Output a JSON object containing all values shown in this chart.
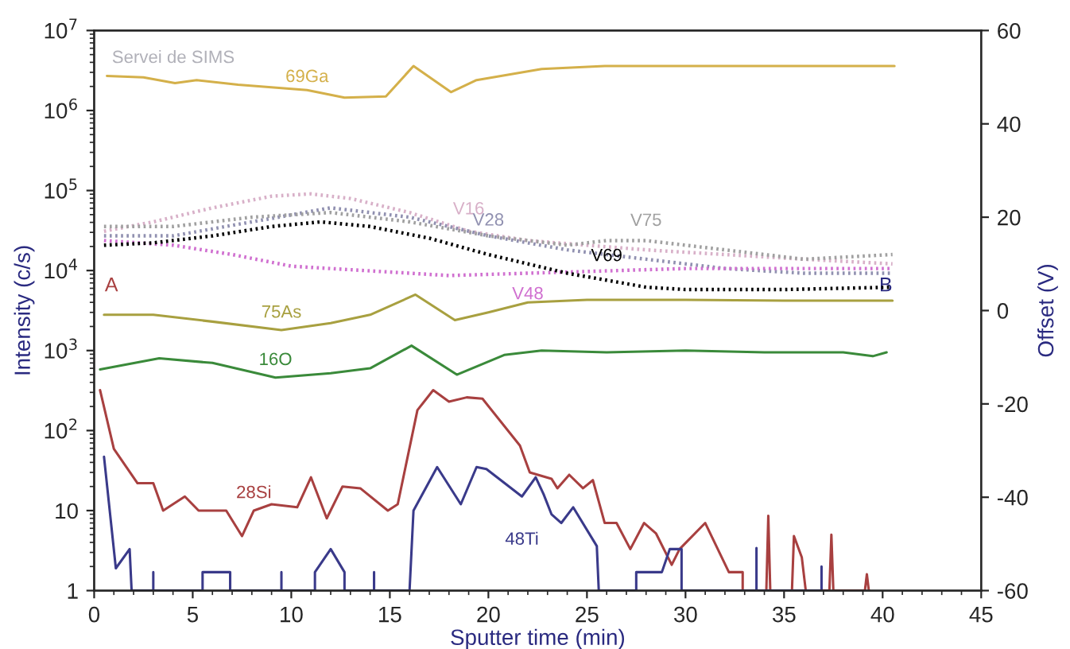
{
  "chart_data": {
    "type": "line",
    "xlabel": "Sputter time (min)",
    "ylabel": "Intensity (c/s)",
    "y2label": "Offset (V)",
    "log": "y",
    "xlim": [
      0,
      45
    ],
    "xticks": [
      0,
      5,
      10,
      15,
      20,
      25,
      30,
      35,
      40,
      45
    ],
    "ylim": [
      1,
      10000000
    ],
    "yticks": [
      {
        "value": 1,
        "label": "1"
      },
      {
        "value": 10,
        "label": "10"
      },
      {
        "value": 100,
        "label": "10$^{2}$"
      },
      {
        "value": 1000,
        "label": "10$^{3}$"
      },
      {
        "value": 10000,
        "label": "10$^{4}$"
      },
      {
        "value": 100000,
        "label": "10$^{5}$"
      },
      {
        "value": 1000000,
        "label": "10$^{6}$"
      },
      {
        "value": 10000000,
        "label": "10$^{7}$"
      }
    ],
    "y2lim": [
      -60,
      60
    ],
    "y2ticks": [
      -60,
      -40,
      -20,
      0,
      20,
      40,
      60
    ],
    "grid": false,
    "marker": "none",
    "series": [
      {
        "name": "69Ga",
        "color": "#d4b04a",
        "line_style": "solid",
        "x": [
          0.65,
          2.5,
          4.1,
          5.2,
          7.3,
          10.8,
          12.7,
          14.8,
          16.2,
          18.1,
          19.4,
          22.7,
          25.9,
          40.6
        ],
        "values": [
          2700000,
          2600000,
          2200000,
          2400000,
          2100000,
          1800000,
          1450000,
          1500000,
          3600000,
          1700000,
          2400000,
          3300000,
          3600000,
          3600000
        ]
      },
      {
        "name": "75As",
        "color": "#a8a040",
        "line_style": "solid",
        "x": [
          0.5,
          3,
          6,
          9.5,
          12,
          14,
          16.3,
          18.3,
          20,
          22,
          25,
          30,
          35,
          40.5
        ],
        "values": [
          2800,
          2800,
          2300,
          1800,
          2200,
          2800,
          5000,
          2400,
          3000,
          4000,
          4300,
          4300,
          4200,
          4200
        ]
      },
      {
        "name": "16O",
        "color": "#3a8a3a",
        "line_style": "solid",
        "x": [
          0.3,
          3.3,
          6,
          9.2,
          12,
          14,
          16.1,
          18.4,
          20.8,
          22.7,
          26,
          30,
          34,
          38,
          39.5,
          40.2
        ],
        "values": [
          580,
          800,
          700,
          460,
          520,
          600,
          1150,
          500,
          880,
          1000,
          950,
          1000,
          950,
          950,
          850,
          950
        ]
      },
      {
        "name": "28Si",
        "color": "#a84040",
        "line_style": "solid",
        "x": [
          0.3,
          1.0,
          2.2,
          3.0,
          3.5,
          4.6,
          5.3,
          6.7,
          7.5,
          8.1,
          9.0,
          10.3,
          11.0,
          11.8,
          12.6,
          13.5,
          14.9,
          15.4,
          16.4,
          17.2,
          18.0,
          18.9,
          19.7,
          21.6,
          22.1,
          23.2,
          23.5,
          24.1,
          24.8,
          25.3,
          25.9,
          26.5,
          27.2,
          27.9,
          28.5,
          29.3,
          29.7,
          31.0,
          32.2,
          32.9,
          32.9,
          34.1,
          34.2,
          34.3,
          35.4,
          35.5,
          35.9,
          36.1,
          37.3,
          37.4,
          37.5,
          39.1,
          39.2,
          39.3
        ],
        "values": [
          320,
          59,
          22,
          22,
          10,
          15,
          10,
          10,
          4.8,
          10,
          12,
          11,
          26,
          8,
          20,
          19,
          10,
          12,
          180,
          320,
          230,
          260,
          250,
          65,
          30,
          25,
          19,
          28,
          19,
          24,
          7,
          7,
          3.3,
          7,
          5.2,
          2.1,
          3.3,
          7,
          1.7,
          1.7,
          1,
          1,
          8.6,
          1,
          1,
          4.8,
          2.6,
          1,
          1,
          5,
          1,
          1,
          1.6,
          1
        ]
      },
      {
        "name": "48Ti",
        "color": "#3a3a8a",
        "line_style": "solid",
        "x": [
          0.5,
          1.1,
          1.8,
          1.9,
          3.0,
          3.0,
          3.0,
          5.5,
          5.5,
          6.9,
          6.9,
          9.5,
          9.5,
          9.5,
          11.2,
          11.2,
          12.0,
          12.7,
          12.7,
          14.2,
          14.2,
          14.2,
          16.0,
          16.2,
          17.4,
          18.6,
          19.4,
          19.9,
          21.7,
          22.4,
          22.8,
          23.2,
          23.7,
          24.3,
          25.5,
          25.6,
          27.5,
          27.5,
          28.8,
          29.2,
          29.8,
          29.8,
          33.6,
          33.6,
          33.6,
          36.9,
          36.9,
          36.9
        ],
        "values": [
          47,
          1.9,
          3.3,
          1,
          1,
          1.7,
          1,
          1,
          1.7,
          1.7,
          1,
          1,
          1.7,
          1,
          1,
          1.7,
          3.3,
          1.7,
          1,
          1,
          1.7,
          1,
          1,
          10,
          35,
          12,
          35,
          33,
          15,
          26,
          16,
          9,
          7,
          11,
          3.6,
          1,
          1,
          1.7,
          1.7,
          3.3,
          3.3,
          1,
          1,
          3.4,
          1,
          1,
          2,
          1
        ]
      },
      {
        "name": "V16",
        "color": "#d8b0c8",
        "axis": "y2",
        "line_style": "dotted",
        "x": [
          0.5,
          3,
          6,
          9,
          11,
          13,
          16,
          19,
          22,
          25,
          28,
          32,
          36,
          40.5
        ],
        "values": [
          17,
          19,
          22,
          24.5,
          25,
          24,
          21,
          17,
          15,
          14,
          13,
          12,
          11,
          10
        ]
      },
      {
        "name": "V28",
        "color": "#9090b0",
        "axis": "y2",
        "line_style": "dotted",
        "x": [
          0.5,
          4,
          8,
          12,
          16,
          20,
          24,
          28,
          32,
          36,
          40.5
        ],
        "values": [
          16,
          16,
          19,
          22,
          20,
          16,
          13,
          11,
          9,
          8,
          8
        ]
      },
      {
        "name": "V48",
        "color": "#d070d0",
        "axis": "y2",
        "line_style": "dotted",
        "x": [
          0.5,
          4,
          7,
          10,
          14,
          18,
          22,
          26,
          30,
          35,
          40.5
        ],
        "values": [
          15,
          14,
          12,
          9.5,
          8.5,
          7.5,
          8,
          8.5,
          9,
          9,
          9
        ]
      },
      {
        "name": "V69",
        "color": "#000000",
        "axis": "y2",
        "line_style": "dotted",
        "x": [
          0.5,
          3,
          6,
          9,
          11.5,
          14,
          17,
          20,
          22,
          24,
          26,
          28,
          30,
          35,
          40.5
        ],
        "values": [
          14,
          14.5,
          16,
          18,
          19,
          18,
          15.5,
          12,
          10,
          8,
          6.5,
          5,
          4.5,
          4.5,
          5
        ]
      },
      {
        "name": "V75",
        "color": "#a0a0a0",
        "axis": "y2",
        "line_style": "dotted",
        "x": [
          0.5,
          4,
          8,
          12,
          16,
          20,
          24,
          26,
          28,
          32,
          36,
          40.5
        ],
        "values": [
          18,
          18,
          20,
          21,
          19,
          16,
          14,
          15,
          15,
          13,
          11,
          12
        ]
      }
    ],
    "annotations": [
      "Servei de SIMS",
      "A",
      "B"
    ]
  }
}
